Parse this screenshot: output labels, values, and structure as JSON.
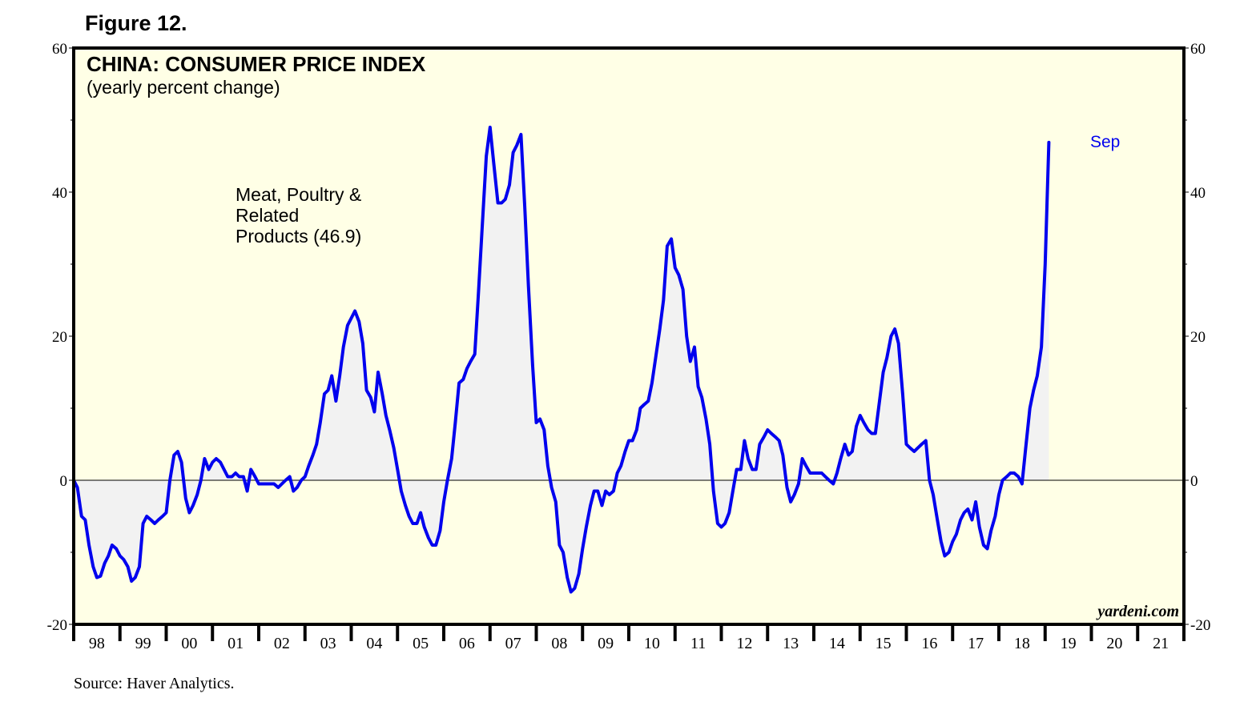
{
  "figure_label": "Figure 12.",
  "source": "Source: Haver Analytics.",
  "chart_data": {
    "type": "area",
    "title": "CHINA: CONSUMER PRICE INDEX",
    "subtitle": "(yearly percent change)",
    "series_label_lines": [
      "Meat, Poultry &",
      "Related",
      "Products (46.9)"
    ],
    "end_label": "Sep",
    "watermark": "yardeni.com",
    "ylim": [
      -20,
      60
    ],
    "y_ticks": [
      -20,
      0,
      20,
      40,
      60
    ],
    "y_tick_labels": [
      "-20",
      "0",
      "20",
      "40",
      "60"
    ],
    "x_start": 1998.0,
    "x_end": 2022.0,
    "x_tick_labels": [
      "98",
      "99",
      "00",
      "01",
      "02",
      "03",
      "04",
      "05",
      "06",
      "07",
      "08",
      "09",
      "10",
      "11",
      "12",
      "13",
      "14",
      "15",
      "16",
      "17",
      "18",
      "19",
      "20",
      "21"
    ],
    "colors": {
      "line": "#0000ee",
      "fill": "#f2f2f2",
      "plot_bg": "#ffffe6",
      "end_label": "#0000ee"
    },
    "series": [
      {
        "name": "Meat, Poultry & Related Products",
        "points": [
          [
            1998.0,
            0.0
          ],
          [
            1998.08,
            -1.0
          ],
          [
            1998.17,
            -5.0
          ],
          [
            1998.25,
            -5.5
          ],
          [
            1998.33,
            -9.0
          ],
          [
            1998.42,
            -12.0
          ],
          [
            1998.5,
            -13.5
          ],
          [
            1998.58,
            -13.3
          ],
          [
            1998.67,
            -11.5
          ],
          [
            1998.75,
            -10.5
          ],
          [
            1998.83,
            -9.0
          ],
          [
            1998.92,
            -9.5
          ],
          [
            1999.0,
            -10.5
          ],
          [
            1999.08,
            -11.0
          ],
          [
            1999.17,
            -12.0
          ],
          [
            1999.25,
            -14.0
          ],
          [
            1999.33,
            -13.5
          ],
          [
            1999.42,
            -12.0
          ],
          [
            1999.5,
            -6.0
          ],
          [
            1999.58,
            -5.0
          ],
          [
            1999.67,
            -5.5
          ],
          [
            1999.75,
            -6.0
          ],
          [
            1999.83,
            -5.5
          ],
          [
            1999.92,
            -5.0
          ],
          [
            2000.0,
            -4.5
          ],
          [
            2000.08,
            0.0
          ],
          [
            2000.17,
            3.5
          ],
          [
            2000.25,
            4.0
          ],
          [
            2000.33,
            2.5
          ],
          [
            2000.42,
            -2.5
          ],
          [
            2000.5,
            -4.5
          ],
          [
            2000.58,
            -3.5
          ],
          [
            2000.67,
            -2.0
          ],
          [
            2000.75,
            0.0
          ],
          [
            2000.83,
            3.0
          ],
          [
            2000.92,
            1.5
          ],
          [
            2001.0,
            2.5
          ],
          [
            2001.08,
            3.0
          ],
          [
            2001.17,
            2.5
          ],
          [
            2001.25,
            1.5
          ],
          [
            2001.33,
            0.5
          ],
          [
            2001.42,
            0.5
          ],
          [
            2001.5,
            1.0
          ],
          [
            2001.58,
            0.5
          ],
          [
            2001.67,
            0.5
          ],
          [
            2001.75,
            -1.5
          ],
          [
            2001.83,
            1.5
          ],
          [
            2001.92,
            0.5
          ],
          [
            2002.0,
            -0.5
          ],
          [
            2002.08,
            -0.5
          ],
          [
            2002.17,
            -0.5
          ],
          [
            2002.25,
            -0.5
          ],
          [
            2002.33,
            -0.5
          ],
          [
            2002.42,
            -1.0
          ],
          [
            2002.5,
            -0.5
          ],
          [
            2002.58,
            0.0
          ],
          [
            2002.67,
            0.5
          ],
          [
            2002.75,
            -1.5
          ],
          [
            2002.83,
            -1.0
          ],
          [
            2002.92,
            0.0
          ],
          [
            2003.0,
            0.5
          ],
          [
            2003.08,
            2.0
          ],
          [
            2003.17,
            3.5
          ],
          [
            2003.25,
            5.0
          ],
          [
            2003.33,
            8.0
          ],
          [
            2003.42,
            12.0
          ],
          [
            2003.5,
            12.5
          ],
          [
            2003.58,
            14.5
          ],
          [
            2003.67,
            11.0
          ],
          [
            2003.75,
            14.5
          ],
          [
            2003.83,
            18.5
          ],
          [
            2003.92,
            21.5
          ],
          [
            2004.0,
            22.5
          ],
          [
            2004.08,
            23.5
          ],
          [
            2004.17,
            22.0
          ],
          [
            2004.25,
            19.0
          ],
          [
            2004.33,
            12.5
          ],
          [
            2004.42,
            11.5
          ],
          [
            2004.5,
            9.5
          ],
          [
            2004.58,
            15.0
          ],
          [
            2004.67,
            12.0
          ],
          [
            2004.75,
            9.0
          ],
          [
            2004.83,
            7.0
          ],
          [
            2004.92,
            4.5
          ],
          [
            2005.0,
            1.5
          ],
          [
            2005.08,
            -1.5
          ],
          [
            2005.17,
            -3.5
          ],
          [
            2005.25,
            -5.0
          ],
          [
            2005.33,
            -6.0
          ],
          [
            2005.42,
            -6.0
          ],
          [
            2005.5,
            -4.5
          ],
          [
            2005.58,
            -6.5
          ],
          [
            2005.67,
            -8.0
          ],
          [
            2005.75,
            -9.0
          ],
          [
            2005.83,
            -9.0
          ],
          [
            2005.92,
            -7.0
          ],
          [
            2006.0,
            -3.0
          ],
          [
            2006.08,
            0.0
          ],
          [
            2006.17,
            3.0
          ],
          [
            2006.25,
            8.0
          ],
          [
            2006.33,
            13.5
          ],
          [
            2006.42,
            14.0
          ],
          [
            2006.5,
            15.5
          ],
          [
            2006.58,
            16.5
          ],
          [
            2006.67,
            17.5
          ],
          [
            2006.75,
            26.0
          ],
          [
            2006.83,
            35.0
          ],
          [
            2006.92,
            45.0
          ],
          [
            2007.0,
            49.0
          ],
          [
            2007.08,
            44.0
          ],
          [
            2007.17,
            38.5
          ],
          [
            2007.25,
            38.5
          ],
          [
            2007.33,
            39.0
          ],
          [
            2007.42,
            41.0
          ],
          [
            2007.5,
            45.5
          ],
          [
            2007.58,
            46.5
          ],
          [
            2007.67,
            48.0
          ],
          [
            2007.75,
            38.0
          ],
          [
            2007.83,
            27.0
          ],
          [
            2007.92,
            16.0
          ],
          [
            2008.0,
            8.0
          ],
          [
            2008.08,
            8.5
          ],
          [
            2008.17,
            7.0
          ],
          [
            2008.25,
            2.0
          ],
          [
            2008.33,
            -1.0
          ],
          [
            2008.42,
            -3.0
          ],
          [
            2008.5,
            -9.0
          ],
          [
            2008.58,
            -10.0
          ],
          [
            2008.67,
            -13.5
          ],
          [
            2008.75,
            -15.5
          ],
          [
            2008.83,
            -15.0
          ],
          [
            2008.92,
            -13.0
          ],
          [
            2009.0,
            -9.5
          ],
          [
            2009.08,
            -6.5
          ],
          [
            2009.17,
            -3.5
          ],
          [
            2009.25,
            -1.5
          ],
          [
            2009.33,
            -1.5
          ],
          [
            2009.42,
            -3.5
          ],
          [
            2009.5,
            -1.5
          ],
          [
            2009.58,
            -2.0
          ],
          [
            2009.67,
            -1.5
          ],
          [
            2009.75,
            1.0
          ],
          [
            2009.83,
            2.0
          ],
          [
            2009.92,
            4.0
          ],
          [
            2010.0,
            5.5
          ],
          [
            2010.08,
            5.5
          ],
          [
            2010.17,
            7.0
          ],
          [
            2010.25,
            10.0
          ],
          [
            2010.33,
            10.5
          ],
          [
            2010.42,
            11.0
          ],
          [
            2010.5,
            13.5
          ],
          [
            2010.58,
            17.0
          ],
          [
            2010.67,
            21.0
          ],
          [
            2010.75,
            25.0
          ],
          [
            2010.83,
            32.5
          ],
          [
            2010.92,
            33.5
          ],
          [
            2011.0,
            29.5
          ],
          [
            2011.08,
            28.5
          ],
          [
            2011.17,
            26.5
          ],
          [
            2011.25,
            20.0
          ],
          [
            2011.33,
            16.5
          ],
          [
            2011.42,
            18.5
          ],
          [
            2011.5,
            13.0
          ],
          [
            2011.58,
            11.5
          ],
          [
            2011.67,
            8.5
          ],
          [
            2011.75,
            5.0
          ],
          [
            2011.83,
            -1.5
          ],
          [
            2011.92,
            -6.0
          ],
          [
            2012.0,
            -6.5
          ],
          [
            2012.08,
            -6.0
          ],
          [
            2012.17,
            -4.5
          ],
          [
            2012.25,
            -1.5
          ],
          [
            2012.33,
            1.5
          ],
          [
            2012.42,
            1.5
          ],
          [
            2012.5,
            5.5
          ],
          [
            2012.58,
            3.0
          ],
          [
            2012.67,
            1.5
          ],
          [
            2012.75,
            1.5
          ],
          [
            2012.83,
            5.0
          ],
          [
            2012.92,
            6.0
          ],
          [
            2013.0,
            7.0
          ],
          [
            2013.08,
            6.5
          ],
          [
            2013.17,
            6.0
          ],
          [
            2013.25,
            5.5
          ],
          [
            2013.33,
            3.5
          ],
          [
            2013.42,
            -1.0
          ],
          [
            2013.5,
            -3.0
          ],
          [
            2013.58,
            -2.0
          ],
          [
            2013.67,
            -0.5
          ],
          [
            2013.75,
            3.0
          ],
          [
            2013.83,
            2.0
          ],
          [
            2013.92,
            1.0
          ],
          [
            2014.0,
            1.0
          ],
          [
            2014.08,
            1.0
          ],
          [
            2014.17,
            1.0
          ],
          [
            2014.25,
            0.5
          ],
          [
            2014.33,
            0.0
          ],
          [
            2014.42,
            -0.5
          ],
          [
            2014.5,
            1.0
          ],
          [
            2014.58,
            3.0
          ],
          [
            2014.67,
            5.0
          ],
          [
            2014.75,
            3.5
          ],
          [
            2014.83,
            4.0
          ],
          [
            2014.92,
            7.5
          ],
          [
            2015.0,
            9.0
          ],
          [
            2015.08,
            8.0
          ],
          [
            2015.17,
            7.0
          ],
          [
            2015.25,
            6.5
          ],
          [
            2015.33,
            6.5
          ],
          [
            2015.42,
            11.0
          ],
          [
            2015.5,
            15.0
          ],
          [
            2015.58,
            17.0
          ],
          [
            2015.67,
            20.0
          ],
          [
            2015.75,
            21.0
          ],
          [
            2015.83,
            19.0
          ],
          [
            2015.92,
            12.0
          ],
          [
            2016.0,
            5.0
          ],
          [
            2016.08,
            4.5
          ],
          [
            2016.17,
            4.0
          ],
          [
            2016.25,
            4.5
          ],
          [
            2016.33,
            5.0
          ],
          [
            2016.42,
            5.5
          ],
          [
            2016.5,
            0.0
          ],
          [
            2016.58,
            -2.0
          ],
          [
            2016.67,
            -5.5
          ],
          [
            2016.75,
            -8.5
          ],
          [
            2016.83,
            -10.5
          ],
          [
            2016.92,
            -10.0
          ],
          [
            2017.0,
            -8.5
          ],
          [
            2017.08,
            -7.5
          ],
          [
            2017.17,
            -5.5
          ],
          [
            2017.25,
            -4.5
          ],
          [
            2017.33,
            -4.0
          ],
          [
            2017.42,
            -5.5
          ],
          [
            2017.5,
            -3.0
          ],
          [
            2017.58,
            -6.5
          ],
          [
            2017.67,
            -9.0
          ],
          [
            2017.75,
            -9.5
          ],
          [
            2017.83,
            -7.0
          ],
          [
            2017.92,
            -5.0
          ],
          [
            2018.0,
            -2.0
          ],
          [
            2018.08,
            0.0
          ],
          [
            2018.17,
            0.5
          ],
          [
            2018.25,
            1.0
          ],
          [
            2018.33,
            1.0
          ],
          [
            2018.42,
            0.5
          ],
          [
            2018.5,
            -0.5
          ],
          [
            2018.58,
            4.5
          ],
          [
            2018.67,
            10.0
          ],
          [
            2018.75,
            12.5
          ],
          [
            2018.83,
            14.5
          ],
          [
            2018.92,
            18.5
          ],
          [
            2019.0,
            30.0
          ],
          [
            2019.08,
            46.9
          ]
        ]
      }
    ]
  }
}
